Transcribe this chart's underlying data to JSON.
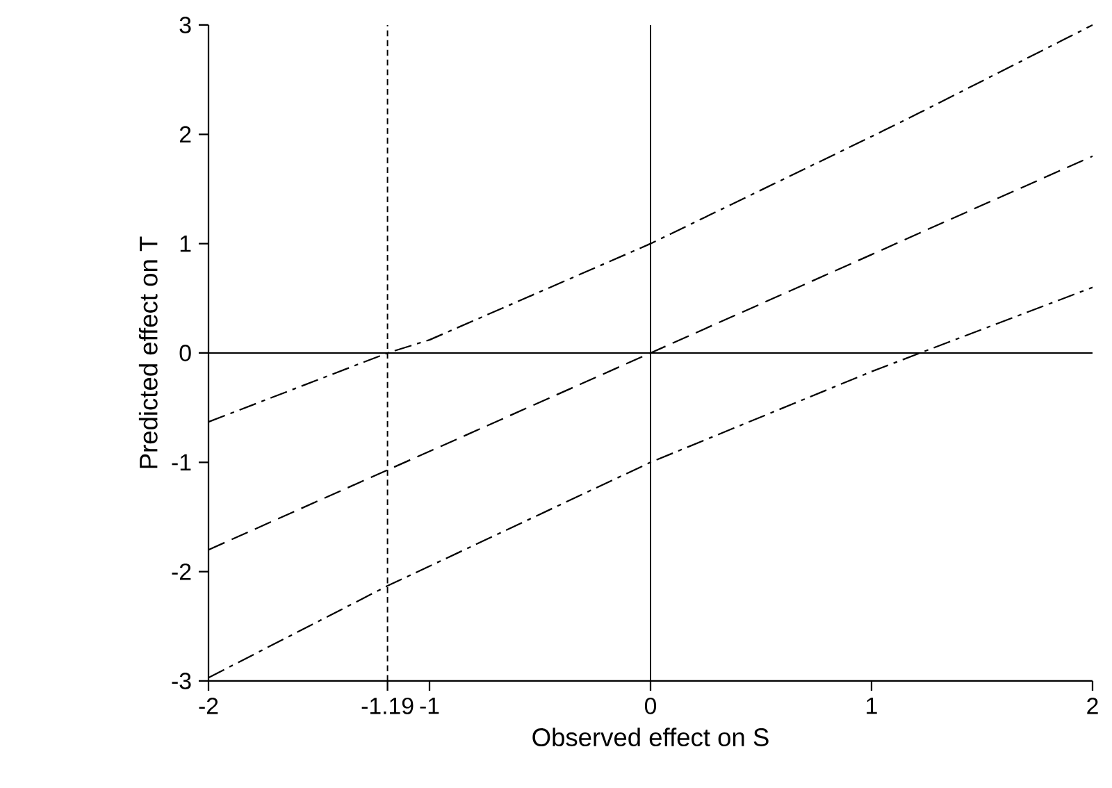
{
  "chart_data": {
    "type": "line",
    "xlabel": "Observed effect on S",
    "ylabel": "Predicted effect on T",
    "x": [
      -2,
      -1.19,
      -1,
      0,
      1,
      1.22,
      2
    ],
    "series": [
      {
        "color": "#000000",
        "line_style": "dashdot",
        "values": [
          -0.63,
          0,
          0.12,
          1,
          1.98,
          2.2,
          3
        ]
      },
      {
        "color": "#000000",
        "line_style": "dashed",
        "values": [
          -1.8,
          -1.07,
          -0.9,
          0,
          0.9,
          1.1,
          1.8
        ]
      },
      {
        "color": "#000000",
        "line_style": "dashdot",
        "values": [
          -2.97,
          -2.13,
          -1.95,
          -1,
          -0.17,
          0,
          0.6
        ]
      }
    ],
    "xlim": [
      -2,
      2
    ],
    "ylim": [
      -3,
      3
    ],
    "xticks": [
      -2,
      -1.19,
      -1,
      0,
      1,
      2
    ],
    "yticks": [
      -3,
      -2,
      -1,
      0,
      1,
      2,
      3
    ],
    "ref_lines": [
      {
        "axis": "x",
        "value": -1.19,
        "line_style": "dashed",
        "color": "#000000"
      },
      {
        "axis": "x",
        "value": 0,
        "line_style": "solid",
        "color": "#000000"
      },
      {
        "axis": "y",
        "value": 0,
        "line_style": "solid",
        "color": "#000000"
      }
    ],
    "marker": "none"
  }
}
